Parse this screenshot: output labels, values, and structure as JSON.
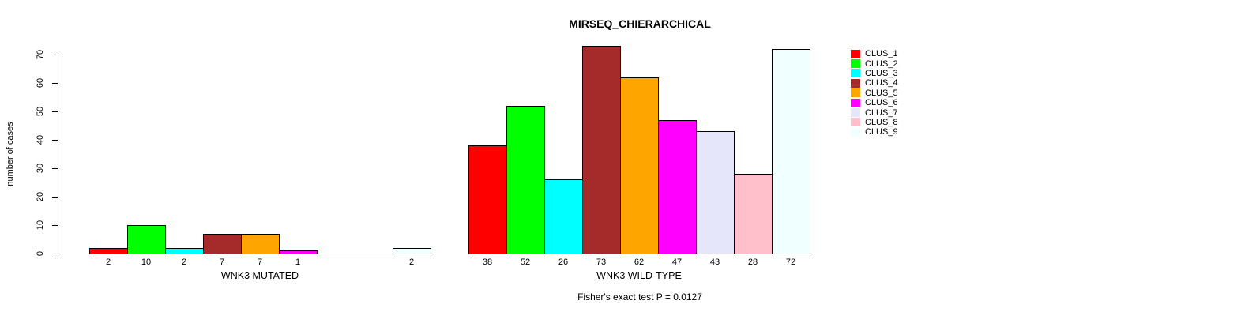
{
  "chart_data": {
    "type": "bar",
    "title": "MIRSEQ_CHIERARCHICAL",
    "ylabel": "number of cases",
    "ylim": [
      0,
      70
    ],
    "yticks": [
      0,
      10,
      20,
      30,
      40,
      50,
      60,
      70
    ],
    "grid": false,
    "legend_position": "right",
    "legend": [
      "CLUS_1",
      "CLUS_2",
      "CLUS_3",
      "CLUS_4",
      "CLUS_5",
      "CLUS_6",
      "CLUS_7",
      "CLUS_8",
      "CLUS_9"
    ],
    "colors": [
      "#FF0000",
      "#00FF00",
      "#00FFFF",
      "#A52A2A",
      "#FFA500",
      "#FF00FF",
      "#E6E6FA",
      "#FFC0CB",
      "#F0FFFF"
    ],
    "bar_border_color": "#000000",
    "categories": [
      "WNK3 MUTATED",
      "WNK3 WILD-TYPE"
    ],
    "groups": [
      {
        "label": "WNK3 MUTATED",
        "values": [
          2,
          10,
          2,
          7,
          7,
          1,
          0,
          0,
          2
        ]
      },
      {
        "label": "WNK3 WILD-TYPE",
        "values": [
          38,
          52,
          26,
          73,
          62,
          47,
          43,
          28,
          72
        ]
      }
    ],
    "zero_value_bars_drawn_as_line": true,
    "zero_value_labels_hidden": true,
    "annotation": "Fisher's exact test P = 0.0127"
  }
}
